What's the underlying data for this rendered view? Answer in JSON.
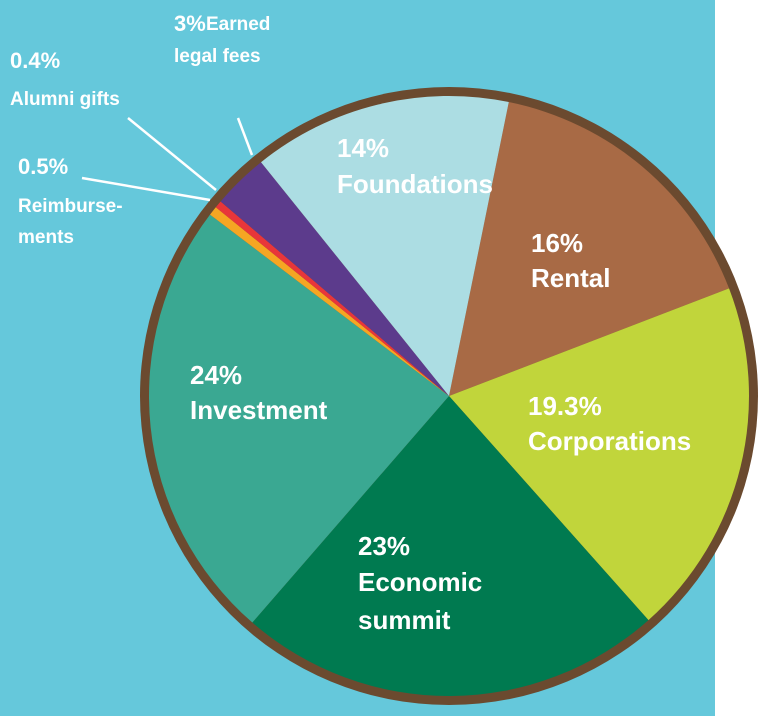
{
  "chart_data": {
    "type": "pie",
    "categories": [
      "Rental",
      "Corporations",
      "Economic\nsummit",
      "Investment",
      "Reimburse-\nments",
      "Alumni gifts",
      "Earned\nlegal fees",
      "Foundations"
    ],
    "values": [
      16,
      19.3,
      23,
      24,
      0.5,
      0.4,
      3,
      14
    ],
    "value_labels": [
      "16%",
      "19.3%",
      "23%",
      "24%",
      "0.5%",
      "0.4%",
      "3%",
      "14%"
    ],
    "colors": [
      "#a86a45",
      "#c1d53b",
      "#007a50",
      "#3aa892",
      "#f5a623",
      "#e8363a",
      "#5c3b8c",
      "#acdde3"
    ]
  }
}
